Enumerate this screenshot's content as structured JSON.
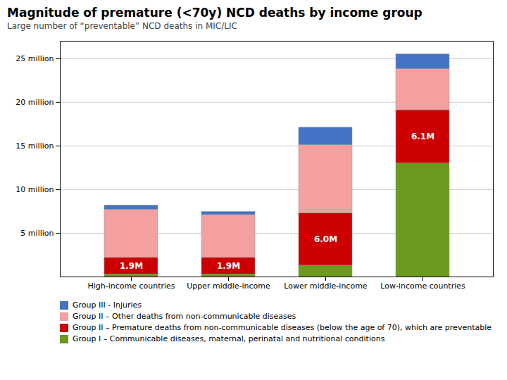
{
  "chart_data": {
    "type": "bar",
    "stacked": true,
    "title": "Magnitude of premature (<70y) NCD deaths by income group",
    "subtitle": "Large number of “preventable” NCD deaths in MIC/LIC",
    "categories": [
      "High-income countries",
      "Upper middle-income",
      "Lower middle-income",
      "Low-income countries"
    ],
    "series": [
      {
        "name": "Group I – Communicable diseases, maternal, perinatal and nutritional conditions",
        "color": "#6b9a1f",
        "values": [
          0.3,
          0.3,
          1.3,
          13.0
        ]
      },
      {
        "name": "Group II – Premature deaths from non-communicable diseases (below the age of 70), which are preventable",
        "color": "#cc0000",
        "values": [
          1.9,
          1.9,
          6.0,
          6.1
        ],
        "data_labels": true,
        "value_labels": [
          "1.9M",
          "1.9M",
          "6.0M",
          "6.1M"
        ]
      },
      {
        "name": "Group II – Other deaths from non-communicable diseases",
        "color": "#f4a0a0",
        "values": [
          5.5,
          4.9,
          7.8,
          4.7
        ]
      },
      {
        "name": "Group III - Injuries",
        "color": "#4472c4",
        "values": [
          0.5,
          0.35,
          2.0,
          1.7
        ]
      }
    ],
    "ylim": [
      0,
      27
    ],
    "yticks": [
      {
        "value": 5,
        "label": "5 million"
      },
      {
        "value": 10,
        "label": "10 million"
      },
      {
        "value": 15,
        "label": "15 million"
      },
      {
        "value": 20,
        "label": "20 million"
      },
      {
        "value": 25,
        "label": "25 million"
      }
    ],
    "grid": true,
    "legend": "bottom"
  }
}
